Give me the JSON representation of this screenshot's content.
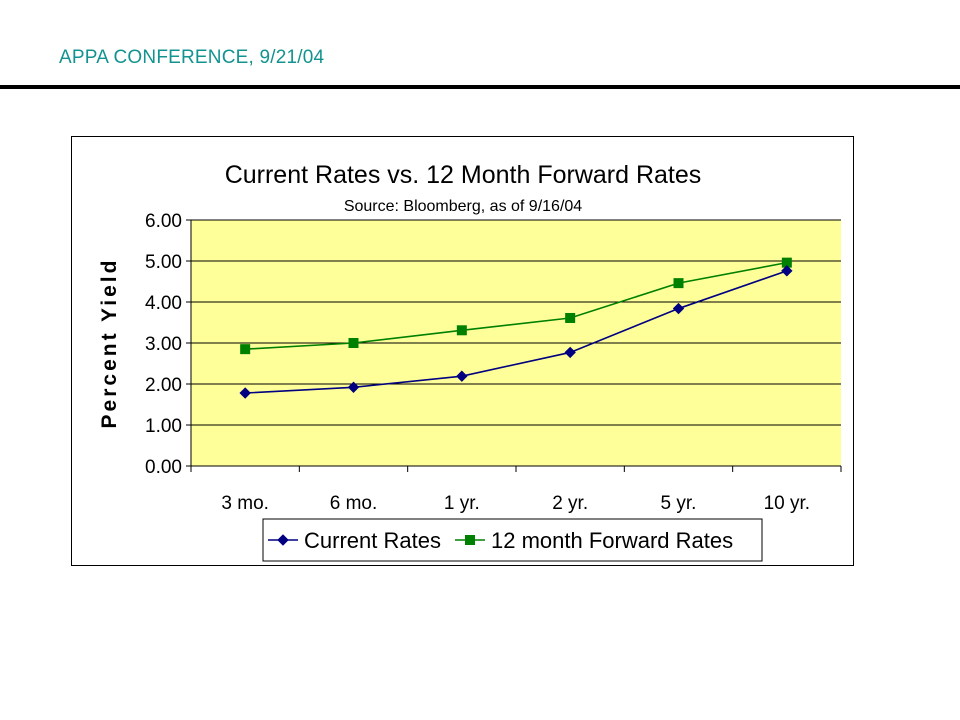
{
  "slide": {
    "header": "APPA CONFERENCE, 9/21/04"
  },
  "colors": {
    "header_text": "#13938f",
    "plot_background": "#ffff99",
    "current_rates": "#000080",
    "forward_rates": "#008000"
  },
  "chart_data": {
    "type": "line",
    "title": "Current Rates vs. 12 Month Forward Rates",
    "subtitle": "Source: Bloomberg, as of 9/16/04",
    "xlabel": "",
    "ylabel": "Percent Yield",
    "categories": [
      "3 mo.",
      "6 mo.",
      "1 yr.",
      "2 yr.",
      "5 yr.",
      "10 yr."
    ],
    "ylim": [
      0,
      6
    ],
    "yticks": [
      "0.00",
      "1.00",
      "2.00",
      "3.00",
      "4.00",
      "5.00",
      "6.00"
    ],
    "grid": true,
    "legend_position": "bottom",
    "series": [
      {
        "name": "Current Rates",
        "marker": "diamond",
        "color": "#000080",
        "values": [
          1.78,
          1.92,
          2.19,
          2.77,
          3.84,
          4.76
        ]
      },
      {
        "name": "12 month Forward Rates",
        "marker": "square",
        "color": "#008000",
        "values": [
          2.85,
          3.0,
          3.31,
          3.61,
          4.46,
          4.96
        ]
      }
    ]
  }
}
